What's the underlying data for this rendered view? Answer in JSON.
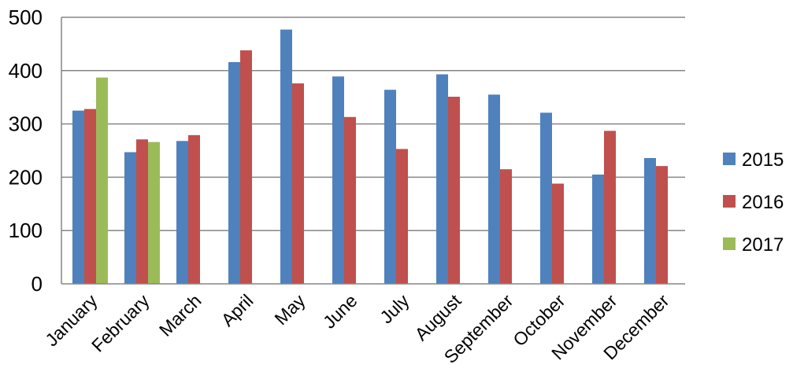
{
  "chart_data": {
    "type": "bar",
    "categories": [
      "January",
      "February",
      "March",
      "April",
      "May",
      "June",
      "July",
      "August",
      "September",
      "October",
      "November",
      "December"
    ],
    "series": [
      {
        "name": "2015",
        "color": "#4F81BD",
        "values": [
          325,
          247,
          268,
          416,
          477,
          389,
          364,
          393,
          355,
          321,
          205,
          236
        ]
      },
      {
        "name": "2016",
        "color": "#C0504D",
        "values": [
          328,
          271,
          279,
          438,
          376,
          313,
          253,
          351,
          215,
          188,
          287,
          221
        ]
      },
      {
        "name": "2017",
        "color": "#9BBB59",
        "values": [
          387,
          266,
          null,
          null,
          null,
          null,
          null,
          null,
          null,
          null,
          null,
          null
        ]
      }
    ],
    "ylim": [
      0,
      500
    ],
    "yticks": [
      0,
      100,
      200,
      300,
      400,
      500
    ],
    "grid": true,
    "legend_position": "right",
    "title": "",
    "xlabel": "",
    "ylabel": ""
  }
}
